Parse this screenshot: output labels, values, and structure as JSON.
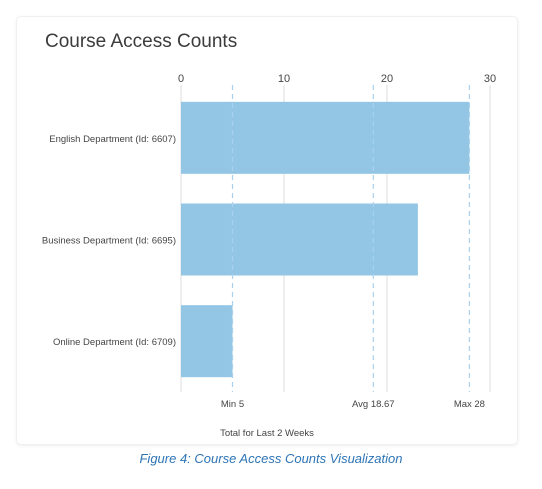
{
  "caption": "Figure 4: Course Access Counts Visualization",
  "chart_data": {
    "type": "bar",
    "orientation": "horizontal",
    "title": "Course Access Counts",
    "xlabel": "Total for Last 2 Weeks",
    "ylabel": "",
    "categories": [
      "English Department (Id: 6607)",
      "Business Department (Id: 6695)",
      "Online Department (Id: 6709)"
    ],
    "values": [
      28,
      23,
      5
    ],
    "xlim": [
      0,
      30
    ],
    "xticks": [
      0,
      10,
      20,
      30
    ],
    "xtick_labels": [
      "0",
      "10",
      "20",
      "30"
    ],
    "axis_position": "top",
    "grid": true,
    "reference_lines": [
      {
        "value": 5,
        "label": "Min 5"
      },
      {
        "value": 18.67,
        "label": "Avg 18.67"
      },
      {
        "value": 28,
        "label": "Max 28"
      }
    ],
    "colors": {
      "bar": "#93c6e5",
      "grid": "#dcdcdc",
      "reference": "#a9d1ee",
      "text": "#444444"
    }
  }
}
